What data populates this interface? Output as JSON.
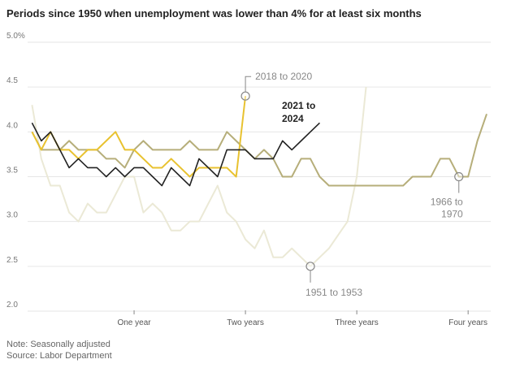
{
  "chart_data": {
    "type": "line",
    "title": "Periods since 1950 when unemployment was lower than 4% for at least six months",
    "xlabel": "",
    "ylabel": "",
    "ylim": [
      2.0,
      5.0
    ],
    "y_ticks": [
      "5.0%",
      "4.5",
      "4.0",
      "3.5",
      "3.0",
      "2.5",
      "2.0"
    ],
    "y_tick_values": [
      5.0,
      4.5,
      4.0,
      3.5,
      3.0,
      2.5,
      2.0
    ],
    "x_ticks": [
      "One year",
      "Two years",
      "Three years",
      "Four years"
    ],
    "x_tick_months": [
      12,
      24,
      36,
      48
    ],
    "grid": true,
    "series": [
      {
        "name": "1951 to 1953",
        "color": "#ebe9d6",
        "values": [
          4.3,
          3.7,
          3.4,
          3.4,
          3.1,
          3.0,
          3.2,
          3.1,
          3.1,
          3.3,
          3.5,
          3.5,
          3.1,
          3.2,
          3.1,
          2.9,
          2.9,
          3.0,
          3.0,
          3.2,
          3.4,
          3.1,
          3.0,
          2.8,
          2.7,
          2.9,
          2.6,
          2.6,
          2.7,
          2.6,
          2.5,
          2.6,
          2.7,
          2.85,
          3.0,
          3.5,
          4.5
        ],
        "marker_month": 31,
        "label_pos": "below"
      },
      {
        "name": "1966 to 1970",
        "color": "#b6ae7a",
        "values": [
          4.0,
          3.8,
          3.8,
          3.8,
          3.9,
          3.8,
          3.8,
          3.8,
          3.7,
          3.7,
          3.6,
          3.8,
          3.9,
          3.8,
          3.8,
          3.8,
          3.8,
          3.9,
          3.8,
          3.8,
          3.8,
          4.0,
          3.9,
          3.8,
          3.7,
          3.8,
          3.7,
          3.5,
          3.5,
          3.7,
          3.7,
          3.5,
          3.4,
          3.4,
          3.4,
          3.4,
          3.4,
          3.4,
          3.4,
          3.4,
          3.4,
          3.5,
          3.5,
          3.5,
          3.7,
          3.7,
          3.5,
          3.5,
          3.9,
          4.2
        ],
        "marker_month": 47,
        "label_pos": "below"
      },
      {
        "name": "2018 to 2020",
        "color": "#e8c230",
        "values": [
          4.0,
          3.8,
          4.0,
          3.8,
          3.8,
          3.7,
          3.8,
          3.8,
          3.9,
          4.0,
          3.8,
          3.8,
          3.7,
          3.6,
          3.6,
          3.7,
          3.6,
          3.5,
          3.6,
          3.6,
          3.6,
          3.6,
          3.5,
          4.4
        ],
        "marker_month": 24,
        "label_pos": "above"
      },
      {
        "name": "2021 to 2024",
        "color": "#222222",
        "values": [
          4.1,
          3.9,
          4.0,
          3.8,
          3.6,
          3.7,
          3.6,
          3.6,
          3.5,
          3.6,
          3.5,
          3.6,
          3.6,
          3.5,
          3.4,
          3.6,
          3.5,
          3.4,
          3.7,
          3.6,
          3.5,
          3.8,
          3.8,
          3.8,
          3.7,
          3.7,
          3.7,
          3.9,
          3.8,
          3.9,
          4.0,
          4.1
        ],
        "label_pos": "end"
      }
    ],
    "series_label_lines": {
      "2021 to 2024": [
        "2021 to",
        "2024"
      ],
      "1966 to 1970": [
        "1966 to",
        "1970"
      ]
    }
  },
  "footer": {
    "note": "Note: Seasonally adjusted",
    "source": "Source: Labor Department"
  }
}
